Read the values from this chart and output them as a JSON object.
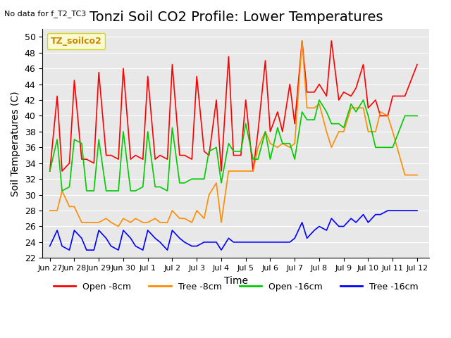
{
  "title": "Tonzi Soil CO2 Profile: Lower Temperatures",
  "subtitle": "No data for f_T2_TC3",
  "ylabel": "Soil Temperatures (C)",
  "xlabel": "Time",
  "ylim": [
    22,
    51
  ],
  "yticks": [
    22,
    24,
    26,
    28,
    30,
    32,
    34,
    36,
    38,
    40,
    42,
    44,
    46,
    48,
    50
  ],
  "legend_label": "TZ_soilco2",
  "bg_color": "#e8e8e8",
  "series": {
    "open_8cm": {
      "color": "#ff0000",
      "label": "Open -8cm",
      "x": [
        0,
        0.3,
        0.5,
        0.8,
        1.0,
        1.3,
        1.5,
        1.8,
        2.0,
        2.3,
        2.5,
        2.8,
        3.0,
        3.3,
        3.5,
        3.8,
        4.0,
        4.3,
        4.5,
        4.8,
        5.0,
        5.3,
        5.5,
        5.8,
        6.0,
        6.3,
        6.5,
        6.8,
        7.0,
        7.3,
        7.5,
        7.8,
        8.0,
        8.3,
        8.5,
        8.8,
        9.0,
        9.3,
        9.5,
        9.8,
        10.0,
        10.3,
        10.5,
        10.8,
        11.0,
        11.3,
        11.5,
        11.8,
        12.0,
        12.3,
        12.5,
        12.8,
        13.0,
        13.3,
        13.5,
        13.8,
        14.0,
        14.5,
        15.0
      ],
      "y": [
        33,
        42.5,
        33,
        34,
        44.5,
        34.5,
        34.5,
        34,
        45.5,
        35,
        35,
        34.5,
        46,
        34.5,
        35,
        34.5,
        45,
        34.5,
        35,
        34.5,
        46.5,
        35,
        35,
        34.5,
        45,
        35.5,
        35,
        42,
        33,
        47.5,
        35,
        35,
        42,
        33,
        38,
        47,
        38,
        40.5,
        38,
        44,
        39,
        49.5,
        43,
        43,
        44,
        42.5,
        49.5,
        42,
        43,
        42.5,
        43.5,
        46.5,
        41,
        42,
        40,
        40,
        42.5,
        42.5,
        46.5
      ]
    },
    "tree_8cm": {
      "color": "#ff8c00",
      "label": "Tree -8cm",
      "x": [
        0,
        0.3,
        0.5,
        0.8,
        1.0,
        1.3,
        1.5,
        1.8,
        2.0,
        2.3,
        2.5,
        2.8,
        3.0,
        3.3,
        3.5,
        3.8,
        4.0,
        4.3,
        4.5,
        4.8,
        5.0,
        5.3,
        5.5,
        5.8,
        6.0,
        6.3,
        6.5,
        6.8,
        7.0,
        7.3,
        7.5,
        7.8,
        8.0,
        8.3,
        8.5,
        8.8,
        9.0,
        9.3,
        9.5,
        9.8,
        10.0,
        10.3,
        10.5,
        10.8,
        11.0,
        11.3,
        11.5,
        11.8,
        12.0,
        12.3,
        12.5,
        12.8,
        13.0,
        13.3,
        13.5,
        13.8,
        14.0,
        14.5,
        15.0
      ],
      "y": [
        28,
        28,
        30.5,
        28.5,
        28.5,
        26.5,
        26.5,
        26.5,
        26.5,
        27,
        26.5,
        26,
        27,
        26.5,
        27,
        26.5,
        26.5,
        27,
        26.5,
        26.5,
        28,
        27,
        27,
        26.5,
        28,
        27,
        30,
        31.5,
        26.5,
        33,
        33,
        33,
        33,
        33,
        36,
        38,
        36.5,
        36,
        36.5,
        36,
        36.5,
        49.5,
        41,
        41,
        41.5,
        38,
        36,
        38,
        38,
        41,
        41,
        41,
        38,
        38,
        40.5,
        40,
        38,
        32.5,
        32.5
      ]
    },
    "open_16cm": {
      "color": "#00cc00",
      "label": "Open -16cm",
      "x": [
        0,
        0.3,
        0.5,
        0.8,
        1.0,
        1.3,
        1.5,
        1.8,
        2.0,
        2.3,
        2.5,
        2.8,
        3.0,
        3.3,
        3.5,
        3.8,
        4.0,
        4.3,
        4.5,
        4.8,
        5.0,
        5.3,
        5.5,
        5.8,
        6.0,
        6.3,
        6.5,
        6.8,
        7.0,
        7.3,
        7.5,
        7.8,
        8.0,
        8.3,
        8.5,
        8.8,
        9.0,
        9.3,
        9.5,
        9.8,
        10.0,
        10.3,
        10.5,
        10.8,
        11.0,
        11.3,
        11.5,
        11.8,
        12.0,
        12.3,
        12.5,
        12.8,
        13.0,
        13.3,
        13.5,
        13.8,
        14.0,
        14.5,
        15.0
      ],
      "y": [
        33,
        37,
        30.5,
        31,
        37,
        36.5,
        30.5,
        30.5,
        37,
        30.5,
        30.5,
        30.5,
        38,
        30.5,
        30.5,
        31,
        38,
        31,
        31,
        30.5,
        38.5,
        31.5,
        31.5,
        32,
        32,
        32,
        35.5,
        36,
        31.5,
        36.5,
        35.5,
        35.5,
        39,
        34.5,
        34.5,
        38,
        34.5,
        38.5,
        36.5,
        36.5,
        34.5,
        40.5,
        39.5,
        39.5,
        42,
        40.5,
        39,
        39,
        38.5,
        41.5,
        40.5,
        42,
        40,
        36,
        36,
        36,
        36,
        40,
        40
      ]
    },
    "tree_16cm": {
      "color": "#0000ff",
      "label": "Tree -16cm",
      "x": [
        0,
        0.3,
        0.5,
        0.8,
        1.0,
        1.3,
        1.5,
        1.8,
        2.0,
        2.3,
        2.5,
        2.8,
        3.0,
        3.3,
        3.5,
        3.8,
        4.0,
        4.3,
        4.5,
        4.8,
        5.0,
        5.3,
        5.5,
        5.8,
        6.0,
        6.3,
        6.5,
        6.8,
        7.0,
        7.3,
        7.5,
        7.8,
        8.0,
        8.3,
        8.5,
        8.8,
        9.0,
        9.3,
        9.5,
        9.8,
        10.0,
        10.3,
        10.5,
        10.8,
        11.0,
        11.3,
        11.5,
        11.8,
        12.0,
        12.3,
        12.5,
        12.8,
        13.0,
        13.3,
        13.5,
        13.8,
        14.0,
        14.5,
        15.0
      ],
      "y": [
        23.5,
        25.5,
        23.5,
        23,
        25.5,
        24.5,
        23,
        23,
        25.5,
        24.5,
        23.5,
        23,
        25.5,
        24.5,
        23.5,
        23,
        25.5,
        24.5,
        24,
        23,
        25.5,
        24.5,
        24,
        23.5,
        23.5,
        24,
        24,
        24,
        23,
        24.5,
        24,
        24,
        24,
        24,
        24,
        24,
        24,
        24,
        24,
        24,
        24.5,
        26.5,
        24.5,
        25.5,
        26,
        25.5,
        27,
        26,
        26,
        27,
        26.5,
        27.5,
        26.5,
        27.5,
        27.5,
        28,
        28,
        28,
        28
      ]
    }
  },
  "xtick_positions": [
    0,
    1,
    2,
    3,
    4,
    5,
    6,
    7,
    8,
    9,
    10,
    11,
    12,
    13,
    14,
    15
  ],
  "xtick_labels": [
    "Jun 27",
    "Jun 28",
    "Jun 29",
    "Jun 30",
    "Jul 1",
    "Jul 2",
    "Jul 3",
    "Jul 4",
    "Jul 5",
    "Jul 6",
    "Jul 7",
    "Jul 8",
    "Jul 9",
    "Jul 10",
    "Jul 11",
    "Jul 12"
  ],
  "title_fontsize": 14,
  "axis_fontsize": 10,
  "tick_fontsize": 9
}
